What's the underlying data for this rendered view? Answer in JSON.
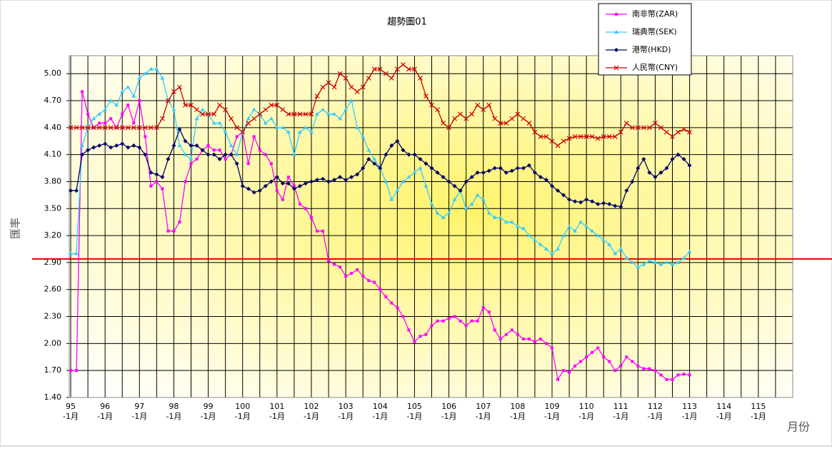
{
  "chart_data": {
    "type": "line",
    "title": "趨勢圖01",
    "y_label": "匯率",
    "x_label": "月份",
    "xlim": [
      -0.5,
      252
    ],
    "ylim": [
      1.4,
      5.2
    ],
    "xticks": [
      {
        "value": 0,
        "label": "95",
        "sublabel": "-1月"
      },
      {
        "value": 12,
        "label": "96",
        "sublabel": "-1月"
      },
      {
        "value": 24,
        "label": "97",
        "sublabel": "-1月"
      },
      {
        "value": 36,
        "label": "98",
        "sublabel": "-1月"
      },
      {
        "value": 48,
        "label": "99",
        "sublabel": "-1月"
      },
      {
        "value": 60,
        "label": "100",
        "sublabel": "-1月"
      },
      {
        "value": 72,
        "label": "101",
        "sublabel": "-1月"
      },
      {
        "value": 84,
        "label": "102",
        "sublabel": "-1月"
      },
      {
        "value": 96,
        "label": "103",
        "sublabel": "-1月"
      },
      {
        "value": 108,
        "label": "104",
        "sublabel": "-1月"
      },
      {
        "value": 120,
        "label": "105",
        "sublabel": "-1月"
      },
      {
        "value": 132,
        "label": "106",
        "sublabel": "-1月"
      },
      {
        "value": 144,
        "label": "107",
        "sublabel": "-1月"
      },
      {
        "value": 156,
        "label": "108",
        "sublabel": "-1月"
      },
      {
        "value": 168,
        "label": "109",
        "sublabel": "-1月"
      },
      {
        "value": 180,
        "label": "110",
        "sublabel": "-1月"
      },
      {
        "value": 192,
        "label": "111",
        "sublabel": "-1月"
      },
      {
        "value": 204,
        "label": "112",
        "sublabel": "-1月"
      },
      {
        "value": 216,
        "label": "113",
        "sublabel": "-1月"
      },
      {
        "value": 228,
        "label": "114",
        "sublabel": "-1月"
      },
      {
        "value": 240,
        "label": "115",
        "sublabel": "-1月"
      }
    ],
    "yticks": [
      {
        "value": 1.4,
        "label": "1.40"
      },
      {
        "value": 1.7,
        "label": "1.70"
      },
      {
        "value": 2.0,
        "label": "2.00"
      },
      {
        "value": 2.3,
        "label": "2.30"
      },
      {
        "value": 2.6,
        "label": "2.60"
      },
      {
        "value": 2.9,
        "label": "2.90"
      },
      {
        "value": 3.2,
        "label": "3.20"
      },
      {
        "value": 3.5,
        "label": "3.50"
      },
      {
        "value": 3.8,
        "label": "3.80"
      },
      {
        "value": 4.1,
        "label": "4.10"
      },
      {
        "value": 4.4,
        "label": "4.40"
      },
      {
        "value": 4.7,
        "label": "4.70"
      },
      {
        "value": 5.0,
        "label": "5.00"
      }
    ],
    "grid": true,
    "legend": "top-right",
    "reference_line": 2.94,
    "reference_color": "#e00000",
    "x": [
      0,
      2,
      4,
      6,
      8,
      10,
      12,
      14,
      16,
      18,
      20,
      22,
      24,
      26,
      28,
      30,
      32,
      34,
      36,
      38,
      40,
      42,
      44,
      46,
      48,
      50,
      52,
      54,
      56,
      58,
      60,
      62,
      64,
      66,
      68,
      70,
      72,
      74,
      76,
      78,
      80,
      82,
      84,
      86,
      88,
      90,
      92,
      94,
      96,
      98,
      100,
      102,
      104,
      106,
      108,
      110,
      112,
      114,
      116,
      118,
      120,
      122,
      124,
      126,
      128,
      130,
      132,
      134,
      136,
      138,
      140,
      142,
      144,
      146,
      148,
      150,
      152,
      154,
      156,
      158,
      160,
      162,
      164,
      166,
      168,
      170,
      172,
      174,
      176,
      178,
      180,
      182,
      184,
      186,
      188,
      190,
      192,
      194,
      196,
      198,
      200,
      202,
      204,
      206,
      208,
      210,
      212,
      214,
      216
    ],
    "series": [
      {
        "name": "南非幣(ZAR)",
        "color": "#ff00ff",
        "marker": "square",
        "values": [
          1.7,
          1.7,
          4.8,
          4.55,
          4.4,
          4.45,
          4.45,
          4.5,
          4.4,
          4.55,
          4.65,
          4.45,
          4.7,
          4.3,
          3.75,
          3.8,
          3.72,
          3.25,
          3.25,
          3.35,
          3.8,
          4.0,
          4.05,
          4.15,
          4.2,
          4.15,
          4.15,
          4.05,
          4.1,
          4.3,
          4.35,
          4.0,
          4.3,
          4.15,
          4.1,
          4.0,
          3.7,
          3.6,
          3.85,
          3.75,
          3.55,
          3.5,
          3.4,
          3.25,
          3.25,
          2.92,
          2.88,
          2.85,
          2.75,
          2.78,
          2.82,
          2.75,
          2.7,
          2.68,
          2.6,
          2.52,
          2.45,
          2.4,
          2.3,
          2.15,
          2.02,
          2.08,
          2.1,
          2.2,
          2.25,
          2.25,
          2.28,
          2.3,
          2.25,
          2.2,
          2.25,
          2.25,
          2.4,
          2.35,
          2.15,
          2.05,
          2.1,
          2.15,
          2.1,
          2.05,
          2.05,
          2.02,
          2.05,
          2.0,
          1.95,
          1.6,
          1.7,
          1.68,
          1.75,
          1.8,
          1.85,
          1.9,
          1.95,
          1.85,
          1.8,
          1.7,
          1.75,
          1.85,
          1.8,
          1.75,
          1.72,
          1.72,
          1.7,
          1.65,
          1.6,
          1.6,
          1.65,
          1.66,
          1.65
        ]
      },
      {
        "name": "瑞典幣(SEK)",
        "color": "#33ccff",
        "marker": "triangle",
        "values": [
          3.0,
          3.0,
          4.2,
          4.4,
          4.5,
          4.55,
          4.6,
          4.7,
          4.65,
          4.8,
          4.85,
          4.75,
          4.95,
          5.0,
          5.05,
          5.05,
          4.95,
          4.7,
          4.6,
          4.2,
          4.1,
          4.05,
          4.5,
          4.6,
          4.55,
          4.45,
          4.45,
          4.35,
          4.2,
          4.1,
          4.35,
          4.5,
          4.6,
          4.55,
          4.45,
          4.5,
          4.4,
          4.4,
          4.35,
          4.1,
          4.35,
          4.4,
          4.35,
          4.55,
          4.6,
          4.55,
          4.55,
          4.5,
          4.6,
          4.7,
          4.4,
          4.3,
          4.15,
          4.05,
          3.95,
          3.8,
          3.6,
          3.7,
          3.8,
          3.85,
          3.9,
          3.95,
          3.75,
          3.55,
          3.45,
          3.4,
          3.45,
          3.6,
          3.7,
          3.5,
          3.55,
          3.65,
          3.6,
          3.45,
          3.4,
          3.4,
          3.35,
          3.35,
          3.3,
          3.28,
          3.2,
          3.15,
          3.1,
          3.05,
          3.0,
          3.05,
          3.2,
          3.3,
          3.25,
          3.35,
          3.3,
          3.25,
          3.2,
          3.15,
          3.1,
          3.0,
          3.05,
          2.95,
          2.9,
          2.85,
          2.88,
          2.92,
          2.9,
          2.88,
          2.9,
          2.88,
          2.9,
          2.95,
          3.02
        ]
      },
      {
        "name": "港幣(HKD)",
        "color": "#000066",
        "marker": "diamond",
        "values": [
          3.7,
          3.7,
          4.1,
          4.15,
          4.18,
          4.2,
          4.22,
          4.18,
          4.2,
          4.22,
          4.18,
          4.2,
          4.18,
          4.1,
          3.9,
          3.88,
          3.85,
          4.05,
          4.2,
          4.38,
          4.25,
          4.2,
          4.2,
          4.15,
          4.1,
          4.1,
          4.05,
          4.1,
          4.1,
          4.0,
          3.75,
          3.72,
          3.68,
          3.7,
          3.75,
          3.8,
          3.85,
          3.78,
          3.78,
          3.72,
          3.75,
          3.78,
          3.8,
          3.82,
          3.83,
          3.8,
          3.82,
          3.85,
          3.82,
          3.85,
          3.88,
          3.95,
          4.05,
          4.0,
          3.95,
          4.1,
          4.2,
          4.25,
          4.15,
          4.1,
          4.1,
          4.05,
          4.0,
          3.95,
          3.9,
          3.85,
          3.8,
          3.75,
          3.7,
          3.8,
          3.85,
          3.9,
          3.9,
          3.92,
          3.95,
          3.95,
          3.9,
          3.92,
          3.95,
          3.95,
          3.98,
          3.9,
          3.85,
          3.82,
          3.75,
          3.7,
          3.65,
          3.6,
          3.58,
          3.57,
          3.6,
          3.58,
          3.55,
          3.56,
          3.55,
          3.53,
          3.52,
          3.7,
          3.8,
          3.95,
          4.05,
          3.9,
          3.85,
          3.9,
          3.95,
          4.05,
          4.1,
          4.05,
          3.98
        ]
      },
      {
        "name": "人民幣(CNY)",
        "color": "#cc0000",
        "marker": "x",
        "values": [
          4.4,
          4.4,
          4.4,
          4.4,
          4.4,
          4.4,
          4.4,
          4.4,
          4.4,
          4.4,
          4.4,
          4.4,
          4.4,
          4.4,
          4.4,
          4.4,
          4.5,
          4.7,
          4.8,
          4.85,
          4.65,
          4.65,
          4.6,
          4.55,
          4.55,
          4.55,
          4.65,
          4.6,
          4.5,
          4.4,
          4.35,
          4.45,
          4.5,
          4.55,
          4.6,
          4.65,
          4.65,
          4.6,
          4.55,
          4.55,
          4.55,
          4.55,
          4.55,
          4.75,
          4.85,
          4.9,
          4.85,
          5.0,
          4.95,
          4.85,
          4.8,
          4.85,
          4.95,
          5.05,
          5.05,
          5.0,
          4.95,
          5.05,
          5.1,
          5.05,
          5.05,
          4.95,
          4.75,
          4.65,
          4.6,
          4.45,
          4.4,
          4.5,
          4.55,
          4.5,
          4.55,
          4.65,
          4.6,
          4.65,
          4.5,
          4.45,
          4.45,
          4.5,
          4.55,
          4.5,
          4.45,
          4.35,
          4.3,
          4.3,
          4.25,
          4.2,
          4.25,
          4.28,
          4.3,
          4.3,
          4.3,
          4.3,
          4.28,
          4.3,
          4.3,
          4.3,
          4.35,
          4.45,
          4.4,
          4.4,
          4.4,
          4.4,
          4.45,
          4.4,
          4.35,
          4.3,
          4.35,
          4.38,
          4.35
        ]
      }
    ]
  }
}
